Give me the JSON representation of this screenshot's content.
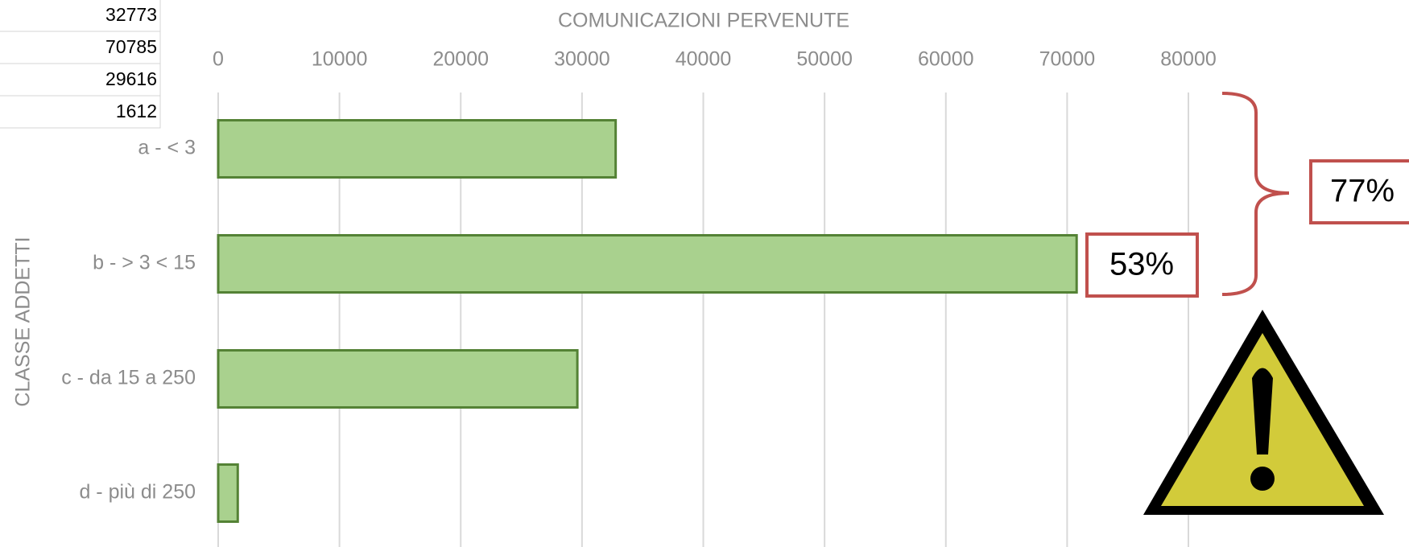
{
  "chart_data": {
    "type": "barh",
    "title": "COMUNICAZIONI PERVENUTE",
    "y_label": "CLASSE ADDETTI",
    "categories": [
      "a - < 3",
      "b - > 3 < 15",
      "c - da 15 a 250",
      "d - più di 250"
    ],
    "values": [
      32773,
      70785,
      29616,
      1612
    ],
    "color": "#a9d18e",
    "edge_color": "#548235",
    "xlim": [
      0,
      80000
    ],
    "xticks": [
      0,
      10000,
      20000,
      30000,
      40000,
      50000,
      60000,
      70000,
      80000
    ],
    "grid": true,
    "annotations": [
      "53%",
      "77%"
    ]
  }
}
